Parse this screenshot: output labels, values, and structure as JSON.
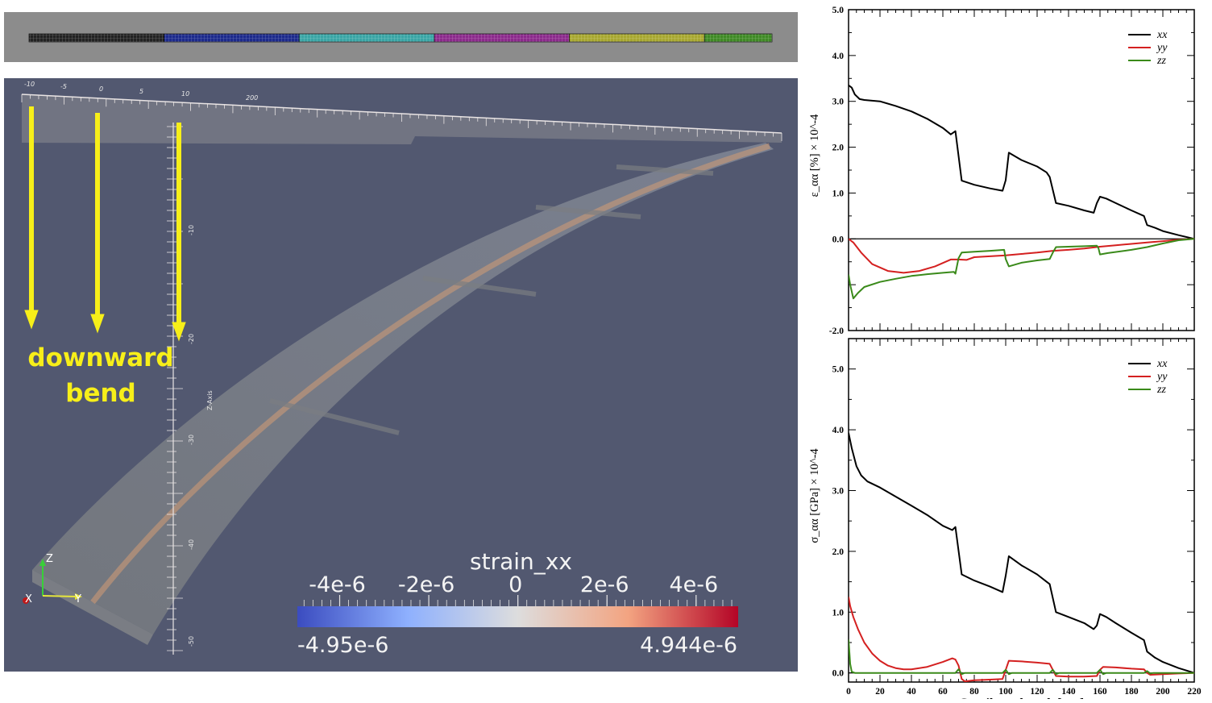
{
  "annotation": {
    "line1": "downward",
    "line2": "bend"
  },
  "colorbar": {
    "title": "strain_xx",
    "ticks": [
      "-4e-6",
      "-2e-6",
      "0",
      "2e-6",
      "4e-6"
    ],
    "tick_values": [
      -4e-06,
      -2e-06,
      0,
      2e-06,
      4e-06
    ],
    "min_label": "-4.95e-6",
    "max_label": "4.944e-6",
    "min": -4.95e-06,
    "max": 4.944e-06,
    "low_color": "#3b4cc0",
    "mid_color": "#dddddd",
    "high_color": "#b40426"
  },
  "viewport": {
    "background": "#525870",
    "axis_z_label": "Z-Axis",
    "axis_z_ticks": [
      "-10",
      "-20",
      "-30",
      "-40",
      "-50"
    ],
    "axis_top_ticks": [
      "-10",
      "-5",
      "0",
      "5",
      "10",
      "200"
    ],
    "orientation": {
      "z": "Z",
      "x": "X",
      "y": "Y"
    }
  },
  "top_strip": {
    "segment_colors": [
      "#222222",
      "#1c2a8c",
      "#3aa6a6",
      "#8c2a8c",
      "#a8a830",
      "#3f8a25"
    ]
  },
  "chart_data": [
    {
      "type": "line",
      "title": "",
      "xlabel": "",
      "ylabel": "ε_αα [%] × 10^-4",
      "xlim": [
        0,
        220
      ],
      "ylim": [
        -2.0,
        5.0
      ],
      "yticks": [
        "5.0",
        "4.0",
        "3.0",
        "2.0",
        "1.0",
        "0.0",
        "-2.0"
      ],
      "ytick_values": [
        5.0,
        4.0,
        3.0,
        2.0,
        1.0,
        0.0,
        -2.0
      ],
      "legend_position": "top-right",
      "series": [
        {
          "name": "xx",
          "color": "#000000",
          "x": [
            0,
            2,
            4,
            7,
            10,
            20,
            30,
            40,
            50,
            60,
            65,
            68,
            72,
            80,
            90,
            98,
            100,
            102,
            110,
            120,
            126,
            128,
            132,
            140,
            150,
            156,
            158,
            160,
            164,
            170,
            180,
            188,
            190,
            195,
            200,
            210,
            220
          ],
          "values": [
            3.35,
            3.3,
            3.15,
            3.05,
            3.03,
            3.0,
            2.9,
            2.78,
            2.62,
            2.42,
            2.28,
            2.35,
            1.27,
            1.18,
            1.1,
            1.05,
            1.28,
            1.88,
            1.72,
            1.58,
            1.45,
            1.35,
            0.78,
            0.72,
            0.62,
            0.57,
            0.78,
            0.92,
            0.88,
            0.78,
            0.62,
            0.5,
            0.3,
            0.24,
            0.17,
            0.08,
            0.0
          ]
        },
        {
          "name": "yy",
          "color": "#d42020",
          "x": [
            0,
            3,
            8,
            15,
            25,
            35,
            45,
            55,
            65,
            70,
            75,
            80,
            90,
            100,
            110,
            120,
            130,
            140,
            150,
            160,
            170,
            180,
            190,
            200,
            210,
            220
          ],
          "values": [
            0.0,
            -0.08,
            -0.3,
            -0.55,
            -0.7,
            -0.74,
            -0.7,
            -0.6,
            -0.45,
            -0.45,
            -0.46,
            -0.4,
            -0.38,
            -0.36,
            -0.33,
            -0.3,
            -0.26,
            -0.24,
            -0.21,
            -0.17,
            -0.14,
            -0.11,
            -0.08,
            -0.05,
            -0.02,
            0.0
          ]
        },
        {
          "name": "zz",
          "color": "#3a8a1a",
          "x": [
            0,
            1,
            3,
            6,
            10,
            20,
            30,
            40,
            50,
            60,
            67,
            68,
            70,
            72,
            80,
            90,
            99,
            100,
            102,
            110,
            120,
            128,
            130,
            132,
            140,
            150,
            158,
            159,
            160,
            165,
            180,
            190,
            200,
            210,
            220
          ],
          "values": [
            -0.78,
            -1.0,
            -1.3,
            -1.18,
            -1.05,
            -0.94,
            -0.87,
            -0.81,
            -0.77,
            -0.74,
            -0.72,
            -0.76,
            -0.42,
            -0.3,
            -0.28,
            -0.26,
            -0.24,
            -0.44,
            -0.6,
            -0.52,
            -0.47,
            -0.44,
            -0.3,
            -0.18,
            -0.17,
            -0.16,
            -0.15,
            -0.2,
            -0.34,
            -0.31,
            -0.24,
            -0.18,
            -0.1,
            -0.03,
            0.0
          ]
        }
      ]
    },
    {
      "type": "line",
      "title": "",
      "xlabel": "Cantilever length [μm]",
      "ylabel": "σ_αα [GPa] × 10^-4",
      "xlim": [
        0,
        220
      ],
      "ylim": [
        -0.15,
        5.5
      ],
      "yticks": [
        "5.0",
        "4.0",
        "3.0",
        "2.0",
        "1.0",
        "0.0"
      ],
      "ytick_values": [
        5.0,
        4.0,
        3.0,
        2.0,
        1.0,
        0.0
      ],
      "xticks": [
        "0",
        "20",
        "40",
        "60",
        "80",
        "100",
        "120",
        "140",
        "160",
        "180",
        "200",
        "220"
      ],
      "xtick_values": [
        0,
        20,
        40,
        60,
        80,
        100,
        120,
        140,
        160,
        180,
        200,
        220
      ],
      "legend_position": "top-right",
      "series": [
        {
          "name": "xx",
          "color": "#000000",
          "x": [
            0,
            2,
            5,
            8,
            12,
            20,
            30,
            40,
            50,
            60,
            66,
            68,
            72,
            80,
            90,
            98,
            100,
            102,
            110,
            120,
            126,
            128,
            132,
            140,
            150,
            156,
            158,
            160,
            164,
            170,
            180,
            188,
            190,
            195,
            200,
            210,
            220
          ],
          "values": [
            3.95,
            3.7,
            3.4,
            3.25,
            3.15,
            3.05,
            2.9,
            2.75,
            2.6,
            2.42,
            2.35,
            2.4,
            1.62,
            1.52,
            1.42,
            1.33,
            1.6,
            1.92,
            1.77,
            1.62,
            1.5,
            1.46,
            1.0,
            0.92,
            0.82,
            0.72,
            0.78,
            0.97,
            0.92,
            0.82,
            0.66,
            0.54,
            0.35,
            0.25,
            0.18,
            0.08,
            0.0
          ]
        },
        {
          "name": "yy",
          "color": "#d42020",
          "x": [
            0,
            1,
            3,
            6,
            10,
            15,
            20,
            25,
            30,
            35,
            40,
            50,
            60,
            66,
            68,
            70,
            72,
            74,
            80,
            90,
            98,
            100,
            102,
            110,
            120,
            128,
            130,
            132,
            140,
            150,
            158,
            160,
            162,
            170,
            180,
            188,
            190,
            192,
            200,
            210,
            220
          ],
          "values": [
            1.25,
            1.1,
            0.92,
            0.72,
            0.5,
            0.32,
            0.2,
            0.12,
            0.08,
            0.06,
            0.06,
            0.1,
            0.18,
            0.24,
            0.22,
            0.12,
            -0.1,
            -0.14,
            -0.12,
            -0.11,
            -0.1,
            0.05,
            0.2,
            0.19,
            0.17,
            0.15,
            0.05,
            -0.05,
            -0.06,
            -0.06,
            -0.05,
            0.05,
            0.1,
            0.09,
            0.07,
            0.06,
            0.0,
            -0.03,
            -0.02,
            -0.01,
            0.0
          ]
        },
        {
          "name": "zz",
          "color": "#3a8a1a",
          "x": [
            0,
            0.5,
            1,
            2,
            4,
            8,
            20,
            40,
            60,
            68,
            70,
            72,
            74,
            80,
            98,
            100,
            102,
            104,
            110,
            128,
            130,
            132,
            134,
            140,
            158,
            160,
            162,
            164,
            170,
            188,
            190,
            192,
            194,
            200,
            210,
            220
          ],
          "values": [
            0.55,
            0.35,
            0.15,
            0.02,
            0.0,
            0.0,
            0.0,
            0.0,
            0.0,
            0.0,
            0.06,
            -0.02,
            0.0,
            0.0,
            0.0,
            0.05,
            -0.02,
            0.0,
            0.0,
            0.0,
            0.05,
            -0.02,
            0.0,
            0.0,
            0.0,
            0.05,
            -0.02,
            0.0,
            0.0,
            0.0,
            0.03,
            -0.01,
            0.0,
            0.0,
            0.0,
            0.0
          ]
        }
      ]
    }
  ]
}
